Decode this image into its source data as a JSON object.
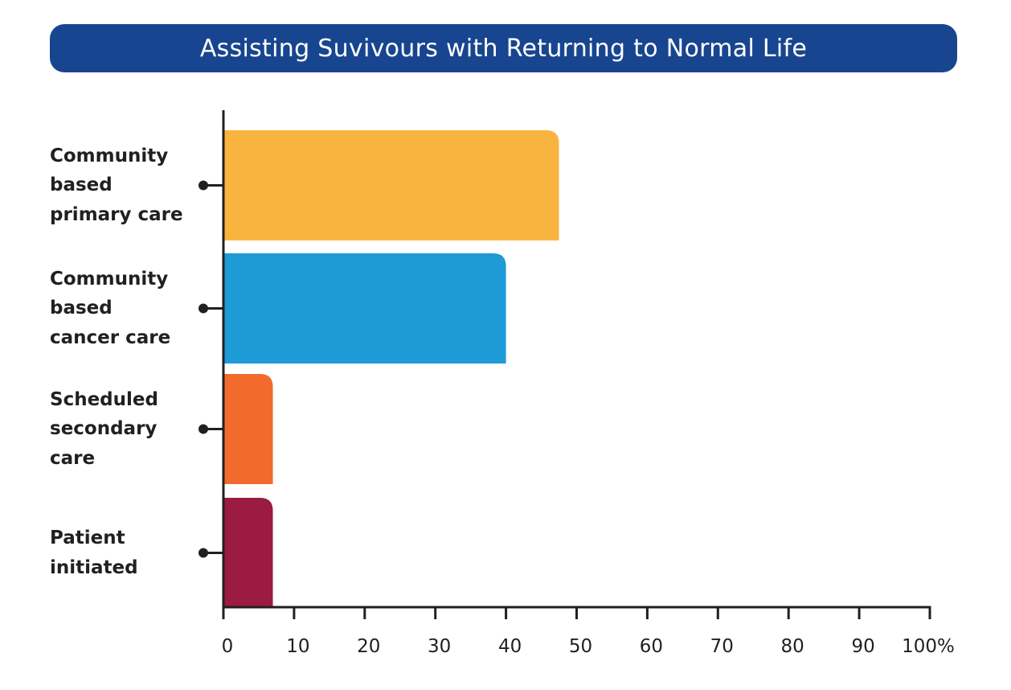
{
  "title": "Assisting Suvivours with Returning to Normal Life",
  "colors": {
    "title_bg": "#18458f",
    "axis": "#231f20"
  },
  "chart_data": {
    "type": "bar",
    "orientation": "horizontal",
    "title": "Assisting Suvivours with Returning to Normal Life",
    "xlabel": "",
    "ylabel": "",
    "xlim": [
      0,
      100
    ],
    "grid": false,
    "categories": [
      "Community\nbased\nprimary care",
      "Community\nbased\ncancer care",
      "Scheduled\nsecondary\ncare",
      "Patient\ninitiated"
    ],
    "values": [
      47.5,
      40,
      7,
      7
    ],
    "bar_colors": [
      "#f9b43f",
      "#1e9ad6",
      "#f26b2c",
      "#9b1b43"
    ],
    "x_ticks": [
      {
        "value": 0,
        "label": "0"
      },
      {
        "value": 10,
        "label": "10"
      },
      {
        "value": 20,
        "label": "20"
      },
      {
        "value": 30,
        "label": "30"
      },
      {
        "value": 40,
        "label": "40"
      },
      {
        "value": 50,
        "label": "50"
      },
      {
        "value": 60,
        "label": "60"
      },
      {
        "value": 70,
        "label": "70"
      },
      {
        "value": 80,
        "label": "80"
      },
      {
        "value": 90,
        "label": "90"
      },
      {
        "value": 100,
        "label": "100%"
      }
    ]
  }
}
